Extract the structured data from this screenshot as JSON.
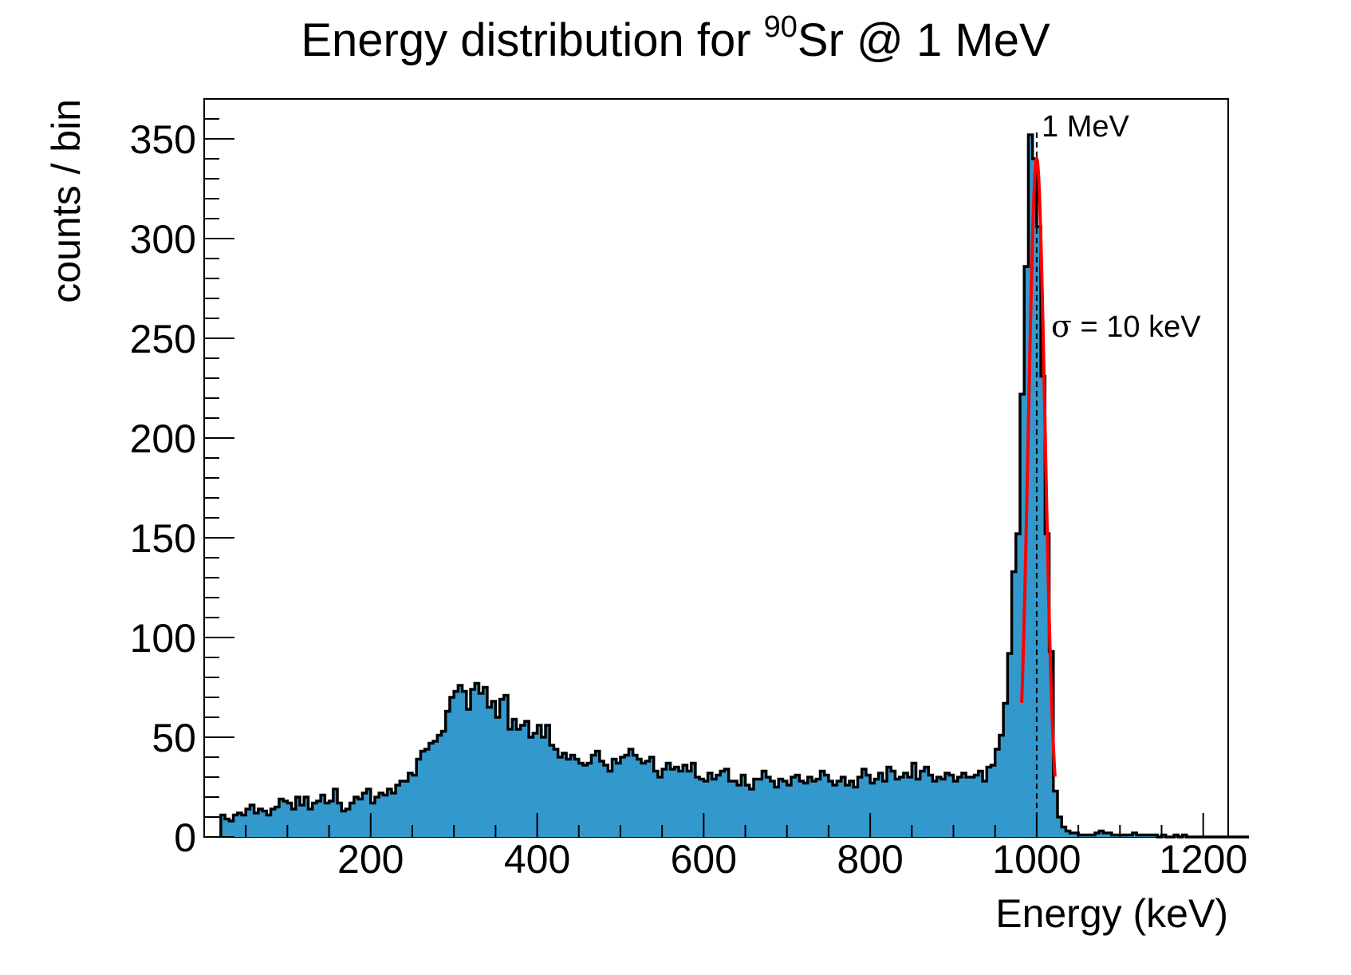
{
  "chart_data": {
    "type": "bar",
    "title": {
      "main": "Energy distribution for ",
      "isotope_mass": "90",
      "isotope_symbol": "Sr",
      "suffix": " @ 1 MeV"
    },
    "xlabel": "Energy (keV)",
    "ylabel": "counts / bin",
    "xlim": [
      0,
      1230
    ],
    "ylim": [
      0,
      370
    ],
    "x_ticks": [
      200,
      400,
      600,
      800,
      1000,
      1200
    ],
    "y_ticks": [
      0,
      50,
      100,
      150,
      200,
      250,
      300,
      350
    ],
    "bin_start": 20,
    "bin_width": 5,
    "counts": [
      11,
      9,
      8,
      11,
      12,
      11,
      14,
      16,
      12,
      14,
      13,
      11,
      14,
      15,
      19,
      18,
      17,
      14,
      20,
      16,
      20,
      14,
      17,
      18,
      21,
      17,
      18,
      24,
      17,
      13,
      14,
      17,
      20,
      19,
      22,
      24,
      17,
      20,
      22,
      21,
      24,
      22,
      26,
      28,
      28,
      32,
      31,
      39,
      43,
      44,
      47,
      48,
      51,
      53,
      63,
      70,
      73,
      76,
      73,
      64,
      74,
      77,
      72,
      75,
      65,
      68,
      60,
      69,
      71,
      54,
      59,
      54,
      56,
      58,
      50,
      52,
      56,
      50,
      56,
      46,
      44,
      40,
      42,
      39,
      41,
      39,
      37,
      36,
      37,
      41,
      43,
      38,
      36,
      33,
      39,
      37,
      40,
      41,
      44,
      41,
      39,
      37,
      38,
      40,
      33,
      30,
      34,
      37,
      34,
      35,
      33,
      36,
      33,
      37,
      30,
      29,
      28,
      32,
      29,
      31,
      33,
      34,
      28,
      28,
      26,
      31,
      26,
      24,
      29,
      29,
      33,
      30,
      28,
      25,
      29,
      28,
      26,
      30,
      31,
      28,
      27,
      30,
      28,
      29,
      33,
      31,
      28,
      26,
      28,
      30,
      26,
      28,
      25,
      30,
      34,
      31,
      27,
      29,
      32,
      28,
      35,
      33,
      29,
      30,
      32,
      30,
      37,
      29,
      33,
      35,
      31,
      28,
      30,
      29,
      32,
      31,
      28,
      30,
      32,
      30,
      30,
      31,
      33,
      28,
      35,
      36,
      44,
      51,
      67,
      92,
      133,
      152,
      222,
      286,
      352,
      340,
      306,
      231,
      152,
      93,
      23,
      10,
      5,
      3,
      2,
      2,
      1,
      1,
      1,
      1,
      2,
      3,
      2,
      2,
      1,
      1,
      1,
      1,
      1,
      2,
      1,
      1,
      1,
      1,
      1,
      0,
      1,
      0,
      0,
      1,
      0,
      1,
      0,
      0,
      0,
      0,
      0,
      0,
      0,
      0,
      0,
      0,
      0,
      0,
      0,
      0,
      0
    ],
    "fit": {
      "name": "gaussian",
      "mean": 1000,
      "sigma": 10,
      "amplitude": 340,
      "x_range": [
        982,
        1022
      ]
    },
    "annotations": {
      "peak_label": "1 MeV",
      "sigma_symbol": "σ",
      "sigma_label": " = 10 keV"
    },
    "colors": {
      "fill": "#3399cc",
      "outline": "#000000",
      "fit": "#ff0000",
      "marker_line": "#000000"
    }
  }
}
